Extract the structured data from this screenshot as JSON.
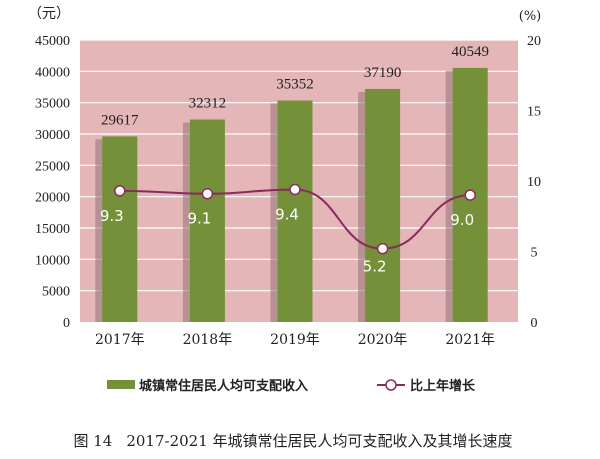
{
  "chart_data": {
    "type": "bar+line",
    "categories": [
      "2017年",
      "2018年",
      "2019年",
      "2020年",
      "2021年"
    ],
    "series": [
      {
        "name": "城镇常住居民人均可支配收入",
        "type": "bar",
        "axis": "left",
        "values": [
          29617,
          32312,
          35352,
          37190,
          40549
        ],
        "color": "#74913a"
      },
      {
        "name": "比上年增长",
        "type": "line",
        "axis": "right",
        "values": [
          9.3,
          9.1,
          9.4,
          5.2,
          9.0
        ],
        "labels": [
          "9.3",
          "9.1",
          "9.4",
          "5.2",
          "9.0"
        ],
        "color": "#8b2a5c"
      }
    ],
    "left_axis": {
      "unit": "（元）",
      "ylim": [
        0,
        45000
      ],
      "ticks": [
        0,
        5000,
        10000,
        15000,
        20000,
        25000,
        30000,
        35000,
        40000,
        45000
      ]
    },
    "right_axis": {
      "unit": "(%)",
      "ylim": [
        0,
        20
      ],
      "ticks": [
        0,
        5,
        10,
        15,
        20
      ]
    },
    "grid": true,
    "background_color": "#e4b6b8",
    "legend_placement": "bottom"
  },
  "caption": {
    "figure_no": "图 14",
    "text": "2017-2021 年城镇常住居民人均可支配收入及其增长速度"
  }
}
